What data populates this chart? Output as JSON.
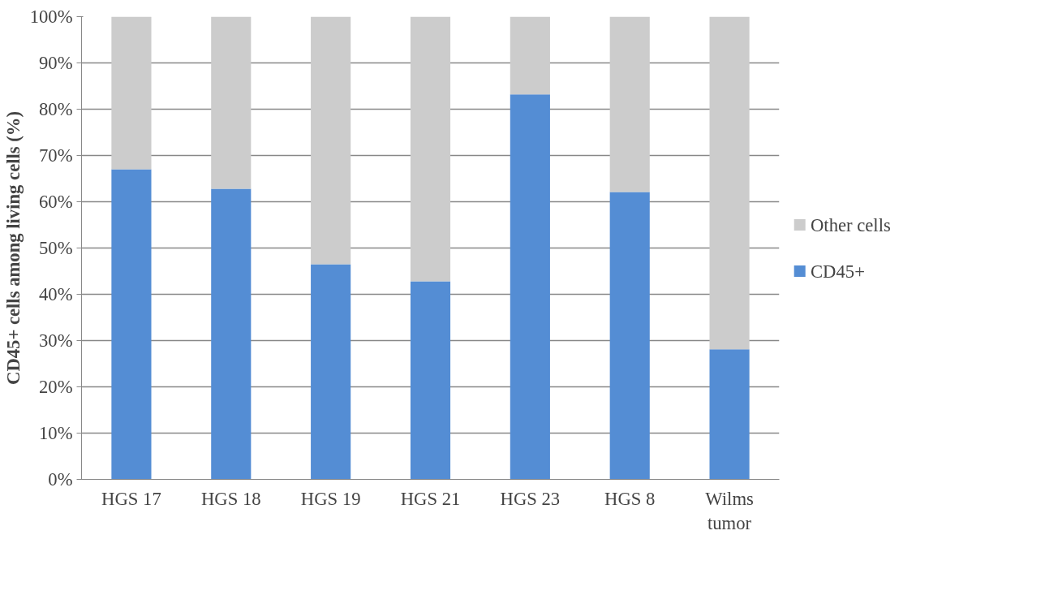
{
  "chart_data": {
    "type": "bar",
    "stacked": true,
    "ylabel": "CD45+ cells among living cells (%)",
    "categories": [
      "HGS 17",
      "HGS 18",
      "HGS 19",
      "HGS 21",
      "HGS 23",
      "HGS 8",
      "Wilms tumor"
    ],
    "series": [
      {
        "name": "CD45+",
        "color": "#548dd4",
        "values": [
          67.0,
          62.8,
          46.5,
          42.8,
          83.2,
          62.1,
          28.1
        ]
      },
      {
        "name": "Other cells",
        "color": "#cccccc",
        "values": [
          33.0,
          37.2,
          53.5,
          57.2,
          16.8,
          37.9,
          71.9
        ]
      }
    ],
    "ylim": [
      0,
      100
    ],
    "yticks": [
      {
        "value": 0,
        "label": "0%"
      },
      {
        "value": 10,
        "label": "10%"
      },
      {
        "value": 20,
        "label": "20%"
      },
      {
        "value": 30,
        "label": "30%"
      },
      {
        "value": 40,
        "label": "40%"
      },
      {
        "value": 50,
        "label": "50%"
      },
      {
        "value": 60,
        "label": "60%"
      },
      {
        "value": 70,
        "label": "70%"
      },
      {
        "value": 80,
        "label": "80%"
      },
      {
        "value": 90,
        "label": "90%"
      },
      {
        "value": 100,
        "label": "100%"
      }
    ],
    "grid": "y",
    "legend": "right"
  }
}
